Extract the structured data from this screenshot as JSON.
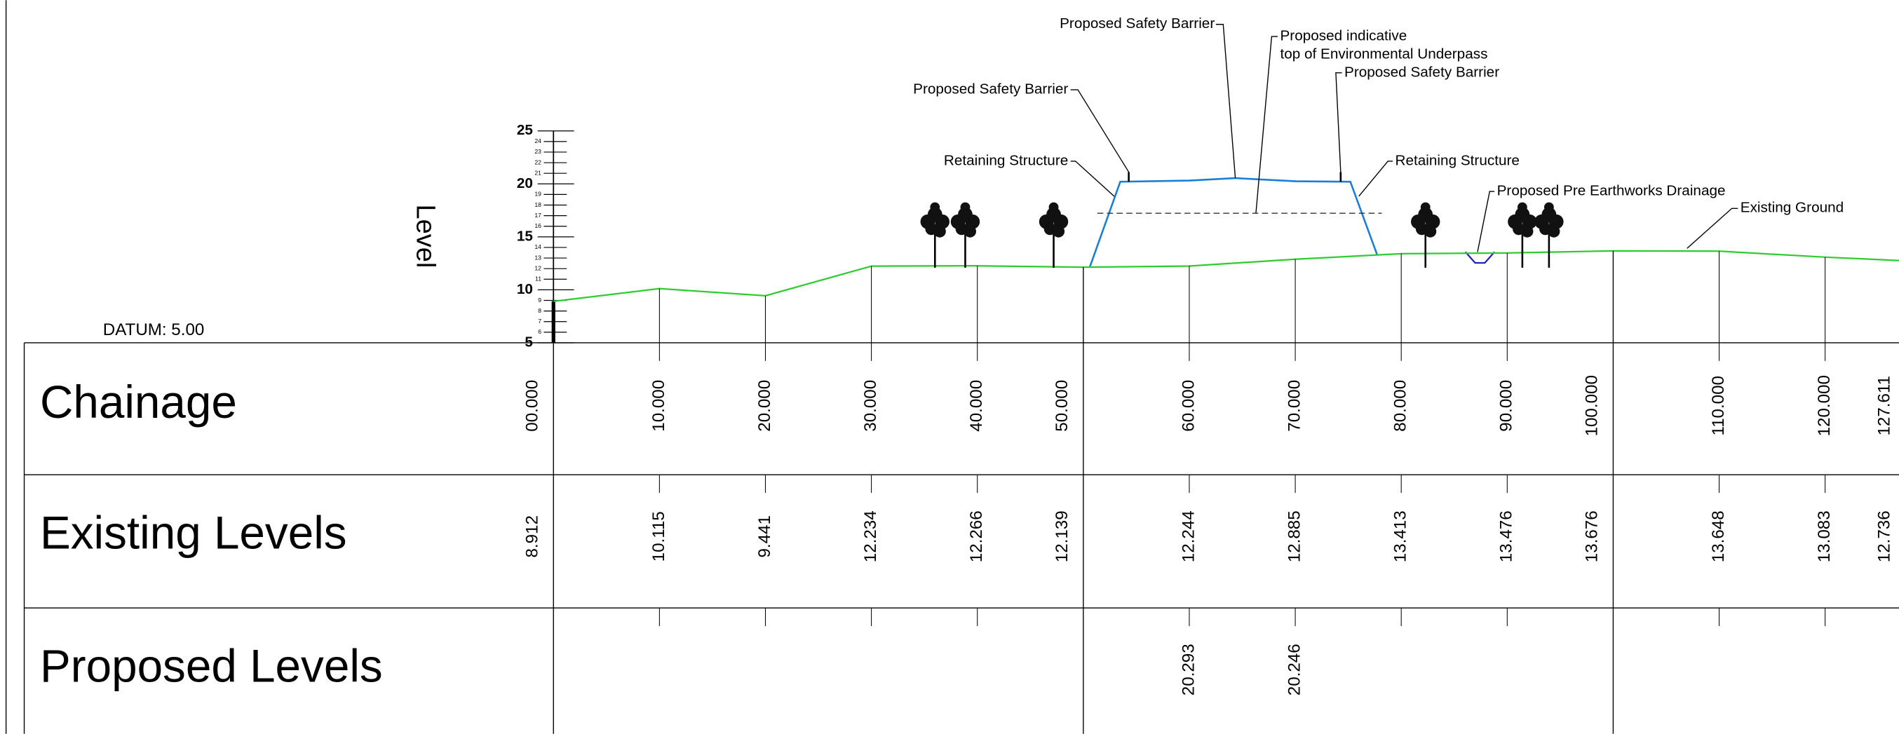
{
  "axis": {
    "label": "Level",
    "ticks": [
      5,
      6,
      7,
      8,
      9,
      10,
      11,
      12,
      13,
      14,
      15,
      16,
      17,
      18,
      19,
      20,
      21,
      22,
      23,
      24,
      25
    ]
  },
  "datum": "DATUM: 5.00",
  "table": {
    "row_labels": [
      "Chainage",
      "Existing Levels",
      "Proposed Levels"
    ],
    "chainage": [
      {
        "value": 0,
        "label": "00.000"
      },
      {
        "value": 10,
        "label": "10.000"
      },
      {
        "value": 20,
        "label": "20.000"
      },
      {
        "value": 30,
        "label": "30.000"
      },
      {
        "value": 40,
        "label": "40.000"
      },
      {
        "value": 50,
        "label": "50.000"
      },
      {
        "value": 60,
        "label": "60.000"
      },
      {
        "value": 70,
        "label": "70.000"
      },
      {
        "value": 80,
        "label": "80.000"
      },
      {
        "value": 90,
        "label": "90.000"
      },
      {
        "value": 100,
        "label": "100.000"
      },
      {
        "value": 110,
        "label": "110.000"
      },
      {
        "value": 120,
        "label": "120.000"
      },
      127.611
    ],
    "existing_levels": [
      8.912,
      10.115,
      9.441,
      12.234,
      12.266,
      12.139,
      12.244,
      12.885,
      13.413,
      13.476,
      13.676,
      13.648,
      13.083,
      12.736
    ],
    "proposed_levels": [
      null,
      null,
      null,
      null,
      null,
      null,
      20.293,
      20.246,
      null,
      null,
      null,
      null,
      null,
      null
    ]
  },
  "annotations": [
    {
      "lines": [
        "Proposed Safety Barrier"
      ]
    },
    {
      "lines": [
        "Proposed indicative",
        "top of Environmental Underpass"
      ]
    },
    {
      "lines": [
        "Proposed Safety Barrier"
      ]
    },
    {
      "lines": [
        "Proposed Safety Barrier"
      ]
    },
    {
      "lines": [
        "Retaining Structure"
      ]
    },
    {
      "lines": [
        "Retaining Structure"
      ]
    },
    {
      "lines": [
        "Proposed Pre Earthworks Drainage"
      ]
    },
    {
      "lines": [
        "Existing Ground"
      ]
    }
  ]
}
